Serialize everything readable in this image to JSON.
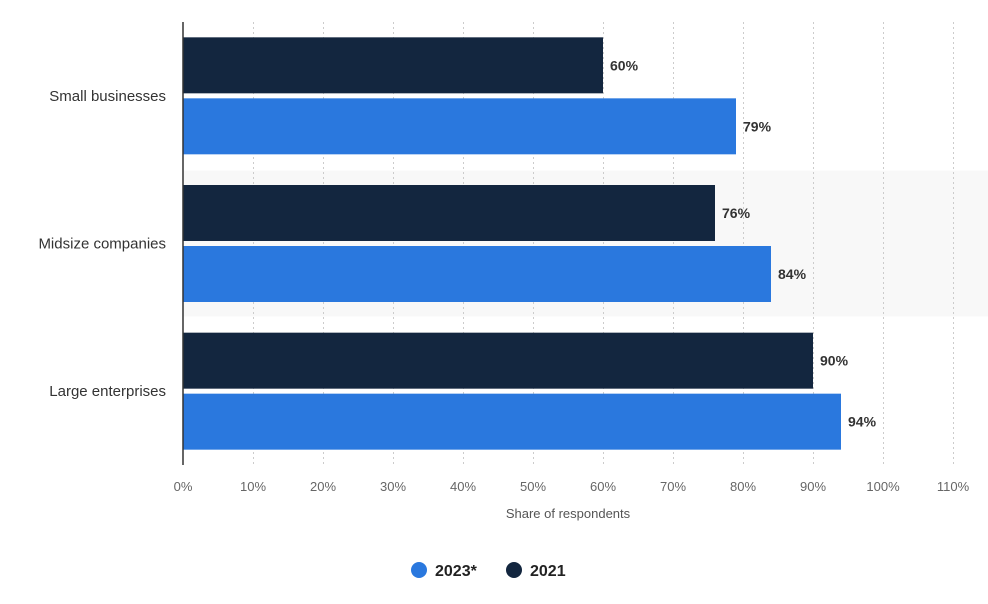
{
  "chart_data": {
    "type": "bar",
    "orientation": "horizontal",
    "categories": [
      "Small businesses",
      "Midsize companies",
      "Large enterprises"
    ],
    "series": [
      {
        "name": "2021",
        "values": [
          60,
          76,
          90
        ],
        "color": "#13263f"
      },
      {
        "name": "2023*",
        "values": [
          79,
          84,
          94
        ],
        "color": "#2a78de"
      }
    ],
    "value_labels": {
      "2021": [
        "60%",
        "76%",
        "90%"
      ],
      "2023*": [
        "79%",
        "84%",
        "94%"
      ]
    },
    "xlim": [
      0,
      110
    ],
    "x_ticks": [
      0,
      10,
      20,
      30,
      40,
      50,
      60,
      70,
      80,
      90,
      100,
      110
    ],
    "x_tick_labels": [
      "0%",
      "10%",
      "20%",
      "30%",
      "40%",
      "50%",
      "60%",
      "70%",
      "80%",
      "90%",
      "100%",
      "110%"
    ],
    "xlabel": "Share of respondents",
    "grid": "vertical dotted",
    "legend": {
      "position": "bottom-center",
      "items": [
        {
          "name": "2023*",
          "color": "#2a78de"
        },
        {
          "name": "2021",
          "color": "#13263f"
        }
      ]
    },
    "highlight_band_color": "#f8f8f8"
  }
}
